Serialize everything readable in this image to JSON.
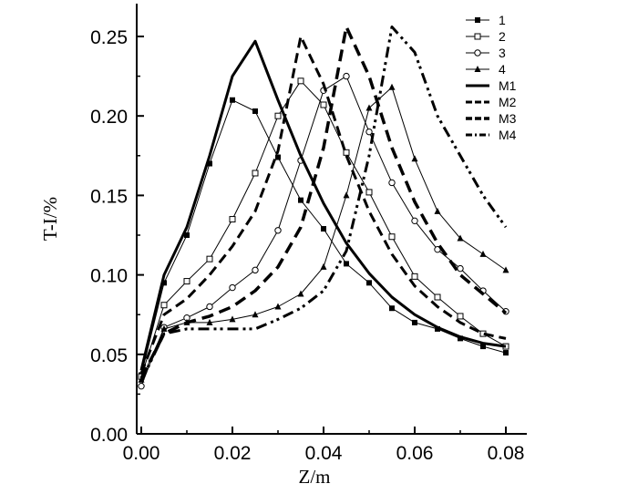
{
  "chart_data": {
    "type": "line",
    "title": "",
    "xlabel": "Z/m",
    "ylabel": "T-I/%",
    "xlim": [
      0,
      0.085
    ],
    "ylim": [
      0,
      0.27
    ],
    "x_ticks": [
      0.0,
      0.02,
      0.04,
      0.06,
      0.08
    ],
    "x_tick_labels": [
      "0.00",
      "0.02",
      "0.04",
      "0.06",
      "0.08"
    ],
    "y_ticks": [
      0.0,
      0.05,
      0.1,
      0.15,
      0.2,
      0.25
    ],
    "y_tick_labels": [
      "0.00",
      "0.05",
      "0.10",
      "0.15",
      "0.20",
      "0.25"
    ],
    "grid": false,
    "legend_position": "top-right",
    "series": [
      {
        "name": "1",
        "style": "thin-line",
        "marker": "square-filled",
        "points": [
          [
            0.0,
            0.037
          ],
          [
            0.005,
            0.095
          ],
          [
            0.01,
            0.125
          ],
          [
            0.015,
            0.17
          ],
          [
            0.02,
            0.21
          ],
          [
            0.025,
            0.203
          ],
          [
            0.03,
            0.174
          ],
          [
            0.035,
            0.147
          ],
          [
            0.04,
            0.129
          ],
          [
            0.045,
            0.107
          ],
          [
            0.05,
            0.095
          ],
          [
            0.055,
            0.079
          ],
          [
            0.06,
            0.07
          ],
          [
            0.065,
            0.066
          ],
          [
            0.07,
            0.06
          ],
          [
            0.075,
            0.055
          ],
          [
            0.08,
            0.051
          ]
        ]
      },
      {
        "name": "2",
        "style": "thin-line",
        "marker": "square-open",
        "points": [
          [
            0.0,
            0.036
          ],
          [
            0.005,
            0.081
          ],
          [
            0.01,
            0.096
          ],
          [
            0.015,
            0.11
          ],
          [
            0.02,
            0.135
          ],
          [
            0.025,
            0.164
          ],
          [
            0.03,
            0.2
          ],
          [
            0.035,
            0.222
          ],
          [
            0.04,
            0.207
          ],
          [
            0.045,
            0.177
          ],
          [
            0.05,
            0.152
          ],
          [
            0.055,
            0.124
          ],
          [
            0.06,
            0.099
          ],
          [
            0.065,
            0.086
          ],
          [
            0.07,
            0.074
          ],
          [
            0.075,
            0.063
          ],
          [
            0.08,
            0.055
          ]
        ]
      },
      {
        "name": "3",
        "style": "thin-line",
        "marker": "circle-open",
        "points": [
          [
            0.0,
            0.03
          ],
          [
            0.005,
            0.067
          ],
          [
            0.01,
            0.073
          ],
          [
            0.015,
            0.08
          ],
          [
            0.02,
            0.092
          ],
          [
            0.025,
            0.103
          ],
          [
            0.03,
            0.128
          ],
          [
            0.035,
            0.172
          ],
          [
            0.04,
            0.216
          ],
          [
            0.045,
            0.225
          ],
          [
            0.05,
            0.19
          ],
          [
            0.055,
            0.158
          ],
          [
            0.06,
            0.134
          ],
          [
            0.065,
            0.116
          ],
          [
            0.07,
            0.104
          ],
          [
            0.075,
            0.09
          ],
          [
            0.08,
            0.077
          ]
        ]
      },
      {
        "name": "4",
        "style": "thin-line",
        "marker": "triangle-filled",
        "points": [
          [
            0.0,
            0.034
          ],
          [
            0.005,
            0.066
          ],
          [
            0.01,
            0.07
          ],
          [
            0.015,
            0.07
          ],
          [
            0.02,
            0.072
          ],
          [
            0.025,
            0.075
          ],
          [
            0.03,
            0.08
          ],
          [
            0.035,
            0.088
          ],
          [
            0.04,
            0.105
          ],
          [
            0.045,
            0.15
          ],
          [
            0.05,
            0.205
          ],
          [
            0.055,
            0.218
          ],
          [
            0.06,
            0.173
          ],
          [
            0.065,
            0.14
          ],
          [
            0.07,
            0.123
          ],
          [
            0.075,
            0.113
          ],
          [
            0.08,
            0.103
          ]
        ]
      },
      {
        "name": "M1",
        "style": "solid-bold",
        "marker": "none",
        "points": [
          [
            0.0,
            0.04
          ],
          [
            0.005,
            0.1
          ],
          [
            0.01,
            0.13
          ],
          [
            0.015,
            0.175
          ],
          [
            0.02,
            0.225
          ],
          [
            0.025,
            0.247
          ],
          [
            0.03,
            0.21
          ],
          [
            0.035,
            0.175
          ],
          [
            0.04,
            0.145
          ],
          [
            0.045,
            0.12
          ],
          [
            0.05,
            0.101
          ],
          [
            0.055,
            0.086
          ],
          [
            0.06,
            0.075
          ],
          [
            0.065,
            0.067
          ],
          [
            0.07,
            0.061
          ],
          [
            0.075,
            0.057
          ],
          [
            0.08,
            0.055
          ]
        ]
      },
      {
        "name": "M2",
        "style": "dash",
        "marker": "none",
        "points": [
          [
            0.0,
            0.038
          ],
          [
            0.005,
            0.075
          ],
          [
            0.01,
            0.085
          ],
          [
            0.015,
            0.1
          ],
          [
            0.02,
            0.118
          ],
          [
            0.025,
            0.14
          ],
          [
            0.03,
            0.178
          ],
          [
            0.035,
            0.25
          ],
          [
            0.04,
            0.22
          ],
          [
            0.045,
            0.175
          ],
          [
            0.05,
            0.14
          ],
          [
            0.055,
            0.113
          ],
          [
            0.06,
            0.093
          ],
          [
            0.065,
            0.08
          ],
          [
            0.07,
            0.07
          ],
          [
            0.075,
            0.063
          ],
          [
            0.08,
            0.06
          ]
        ]
      },
      {
        "name": "M3",
        "style": "dash-bold",
        "marker": "none",
        "points": [
          [
            0.0,
            0.035
          ],
          [
            0.005,
            0.063
          ],
          [
            0.01,
            0.07
          ],
          [
            0.015,
            0.074
          ],
          [
            0.02,
            0.08
          ],
          [
            0.025,
            0.09
          ],
          [
            0.03,
            0.105
          ],
          [
            0.035,
            0.13
          ],
          [
            0.04,
            0.18
          ],
          [
            0.045,
            0.256
          ],
          [
            0.05,
            0.225
          ],
          [
            0.055,
            0.18
          ],
          [
            0.06,
            0.146
          ],
          [
            0.065,
            0.12
          ],
          [
            0.07,
            0.1
          ],
          [
            0.075,
            0.088
          ],
          [
            0.08,
            0.076
          ]
        ]
      },
      {
        "name": "M4",
        "style": "dash-dot-dot",
        "marker": "none",
        "points": [
          [
            0.0,
            0.033
          ],
          [
            0.005,
            0.063
          ],
          [
            0.01,
            0.066
          ],
          [
            0.015,
            0.066
          ],
          [
            0.02,
            0.066
          ],
          [
            0.025,
            0.066
          ],
          [
            0.03,
            0.072
          ],
          [
            0.035,
            0.079
          ],
          [
            0.04,
            0.09
          ],
          [
            0.045,
            0.115
          ],
          [
            0.05,
            0.175
          ],
          [
            0.055,
            0.256
          ],
          [
            0.06,
            0.24
          ],
          [
            0.065,
            0.2
          ],
          [
            0.07,
            0.175
          ],
          [
            0.075,
            0.15
          ],
          [
            0.08,
            0.13
          ]
        ]
      }
    ]
  }
}
